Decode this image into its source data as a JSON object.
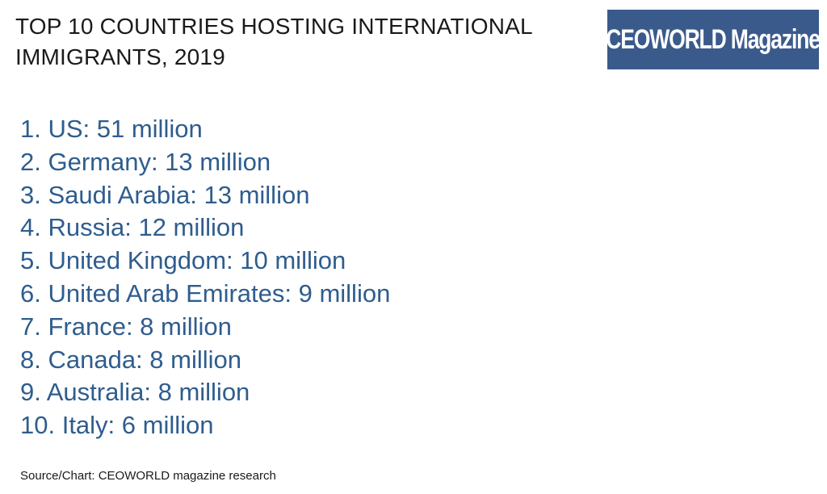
{
  "title": {
    "line1": "TOP 10 COUNTRIES HOSTING INTERNATIONAL",
    "line2": "IMMIGRANTS, 2019"
  },
  "logo": {
    "text": "CEOWORLD Magazine",
    "background": "#3a5a8c"
  },
  "ranking": [
    "1. US: 51 million",
    "2. Germany: 13 million",
    "3. Saudi Arabia: 13 million",
    "4. Russia: 12 million",
    "5. United Kingdom: 10 million",
    "6. United Arab Emirates: 9 million",
    "7. France: 8 million",
    "8. Canada: 8 million",
    "9. Australia: 8 million",
    "10. Italy: 6 million"
  ],
  "text_color": "#2f5d8e",
  "source": "Source/Chart: CEOWORLD magazine research"
}
